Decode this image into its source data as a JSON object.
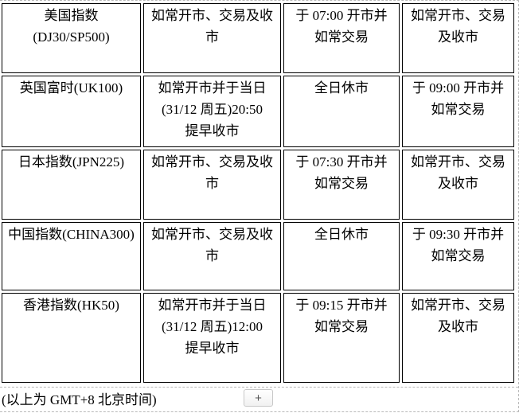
{
  "table": {
    "rows": [
      {
        "cells": [
          "美国指数\n(DJ30/SP500)",
          "如常开市、交易及收\n市",
          "于 07:00 开市并\n如常交易",
          "如常开市、交易\n及收市"
        ]
      },
      {
        "cells": [
          "英国富时(UK100)",
          "如常开市并于当日\n(31/12 周五)20:50\n提早收市",
          "全日休市",
          "于 09:00 开市并\n如常交易"
        ]
      },
      {
        "cells": [
          "日本指数(JPN225)",
          "如常开市、交易及收\n市",
          "于 07:30 开市并\n如常交易",
          "如常开市、交易\n及收市"
        ]
      },
      {
        "cells": [
          "中国指数(CHINA300)",
          "如常开市、交易及收\n市",
          "全日休市",
          "于 09:30 开市并\n如常交易"
        ]
      },
      {
        "cells": [
          "香港指数(HK50)",
          "如常开市并于当日\n(31/12 周五)12:00\n提早收市",
          "于 09:15 开市并\n如常交易",
          "如常开市、交易\n及收市"
        ]
      }
    ]
  },
  "footer": {
    "timezone_note": "(以上为 GMT+8 北京时间)",
    "add_button_label": "+"
  },
  "colors": {
    "cell_border": "#000000",
    "gridline_dashed": "#b8b8b8",
    "button_border": "#c8c8c8",
    "text": "#000000"
  }
}
